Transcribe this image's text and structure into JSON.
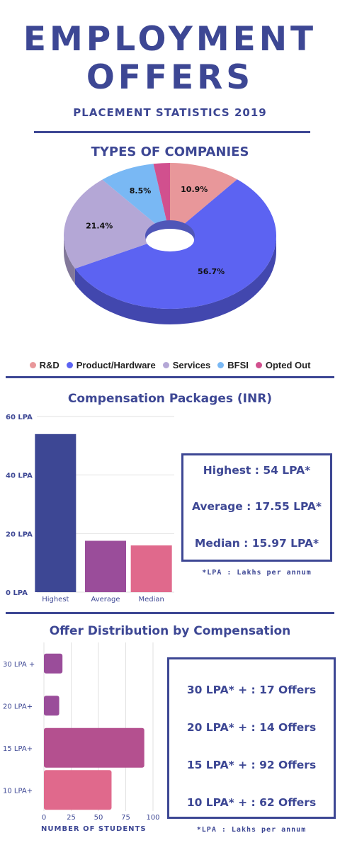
{
  "header": {
    "title_line1": "EMPLOYMENT",
    "title_line2": "OFFERS",
    "subtitle": "PLACEMENT STATISTICS 2019"
  },
  "colors": {
    "navy": "#3d4794",
    "rnd": "#e8979a",
    "product": "#5c63f2",
    "services": "#b4a7d6",
    "bfsi": "#79b8f4",
    "opted": "#d1508e",
    "bar_highest": "#3d4794",
    "bar_average": "#9a4d9a",
    "bar_median": "#e0698c"
  },
  "companies": {
    "title": "TYPES OF COMPANIES",
    "chart_data": {
      "type": "pie",
      "slices": [
        {
          "label": "R&D",
          "value": 10.9,
          "display": "10.9%"
        },
        {
          "label": "Product/Hardware",
          "value": 56.7,
          "display": "56.7%"
        },
        {
          "label": "Services",
          "value": 21.4,
          "display": "21.4%"
        },
        {
          "label": "BFSI",
          "value": 8.5,
          "display": "8.5%"
        },
        {
          "label": "Opted Out",
          "value": 2.5,
          "display": ""
        }
      ],
      "legend_position": "bottom"
    },
    "legend": [
      "R&D",
      "Product/Hardware",
      "Services",
      "BFSI",
      "Opted Out"
    ]
  },
  "compensation": {
    "title": "Compensation Packages (INR)",
    "chart_data": {
      "type": "bar",
      "categories": [
        "Highest",
        "Average",
        "Median"
      ],
      "values": [
        54,
        17.55,
        15.97
      ],
      "ylim": [
        0,
        60
      ],
      "yticks": [
        0,
        20,
        40,
        60
      ],
      "ytick_labels": [
        "0 LPA",
        "20 LPA",
        "40 LPA",
        "60 LPA"
      ],
      "grid": true
    },
    "summary": [
      "Highest : 54 LPA*",
      "Average : 17.55 LPA*",
      "Median : 15.97 LPA*"
    ],
    "note": "*LPA : Lakhs per annum"
  },
  "distribution": {
    "title": "Offer Distribution by Compensation",
    "chart_data": {
      "type": "bar",
      "orientation": "horizontal",
      "categories": [
        "30 LPA +",
        "20 LPA+",
        "15 LPA+",
        "10 LPA+"
      ],
      "values": [
        17,
        14,
        92,
        62
      ],
      "xlim": [
        0,
        100
      ],
      "xticks": [
        0,
        25,
        50,
        75,
        100
      ],
      "xlabel": "NUMBER OF STUDENTS",
      "grid": true
    },
    "summary": [
      "30 LPA* + : 17 Offers",
      "20 LPA* + : 14 Offers",
      "15 LPA* + : 92 Offers",
      "10 LPA* + : 62 Offers"
    ],
    "note": "*LPA : Lakhs per annum"
  }
}
